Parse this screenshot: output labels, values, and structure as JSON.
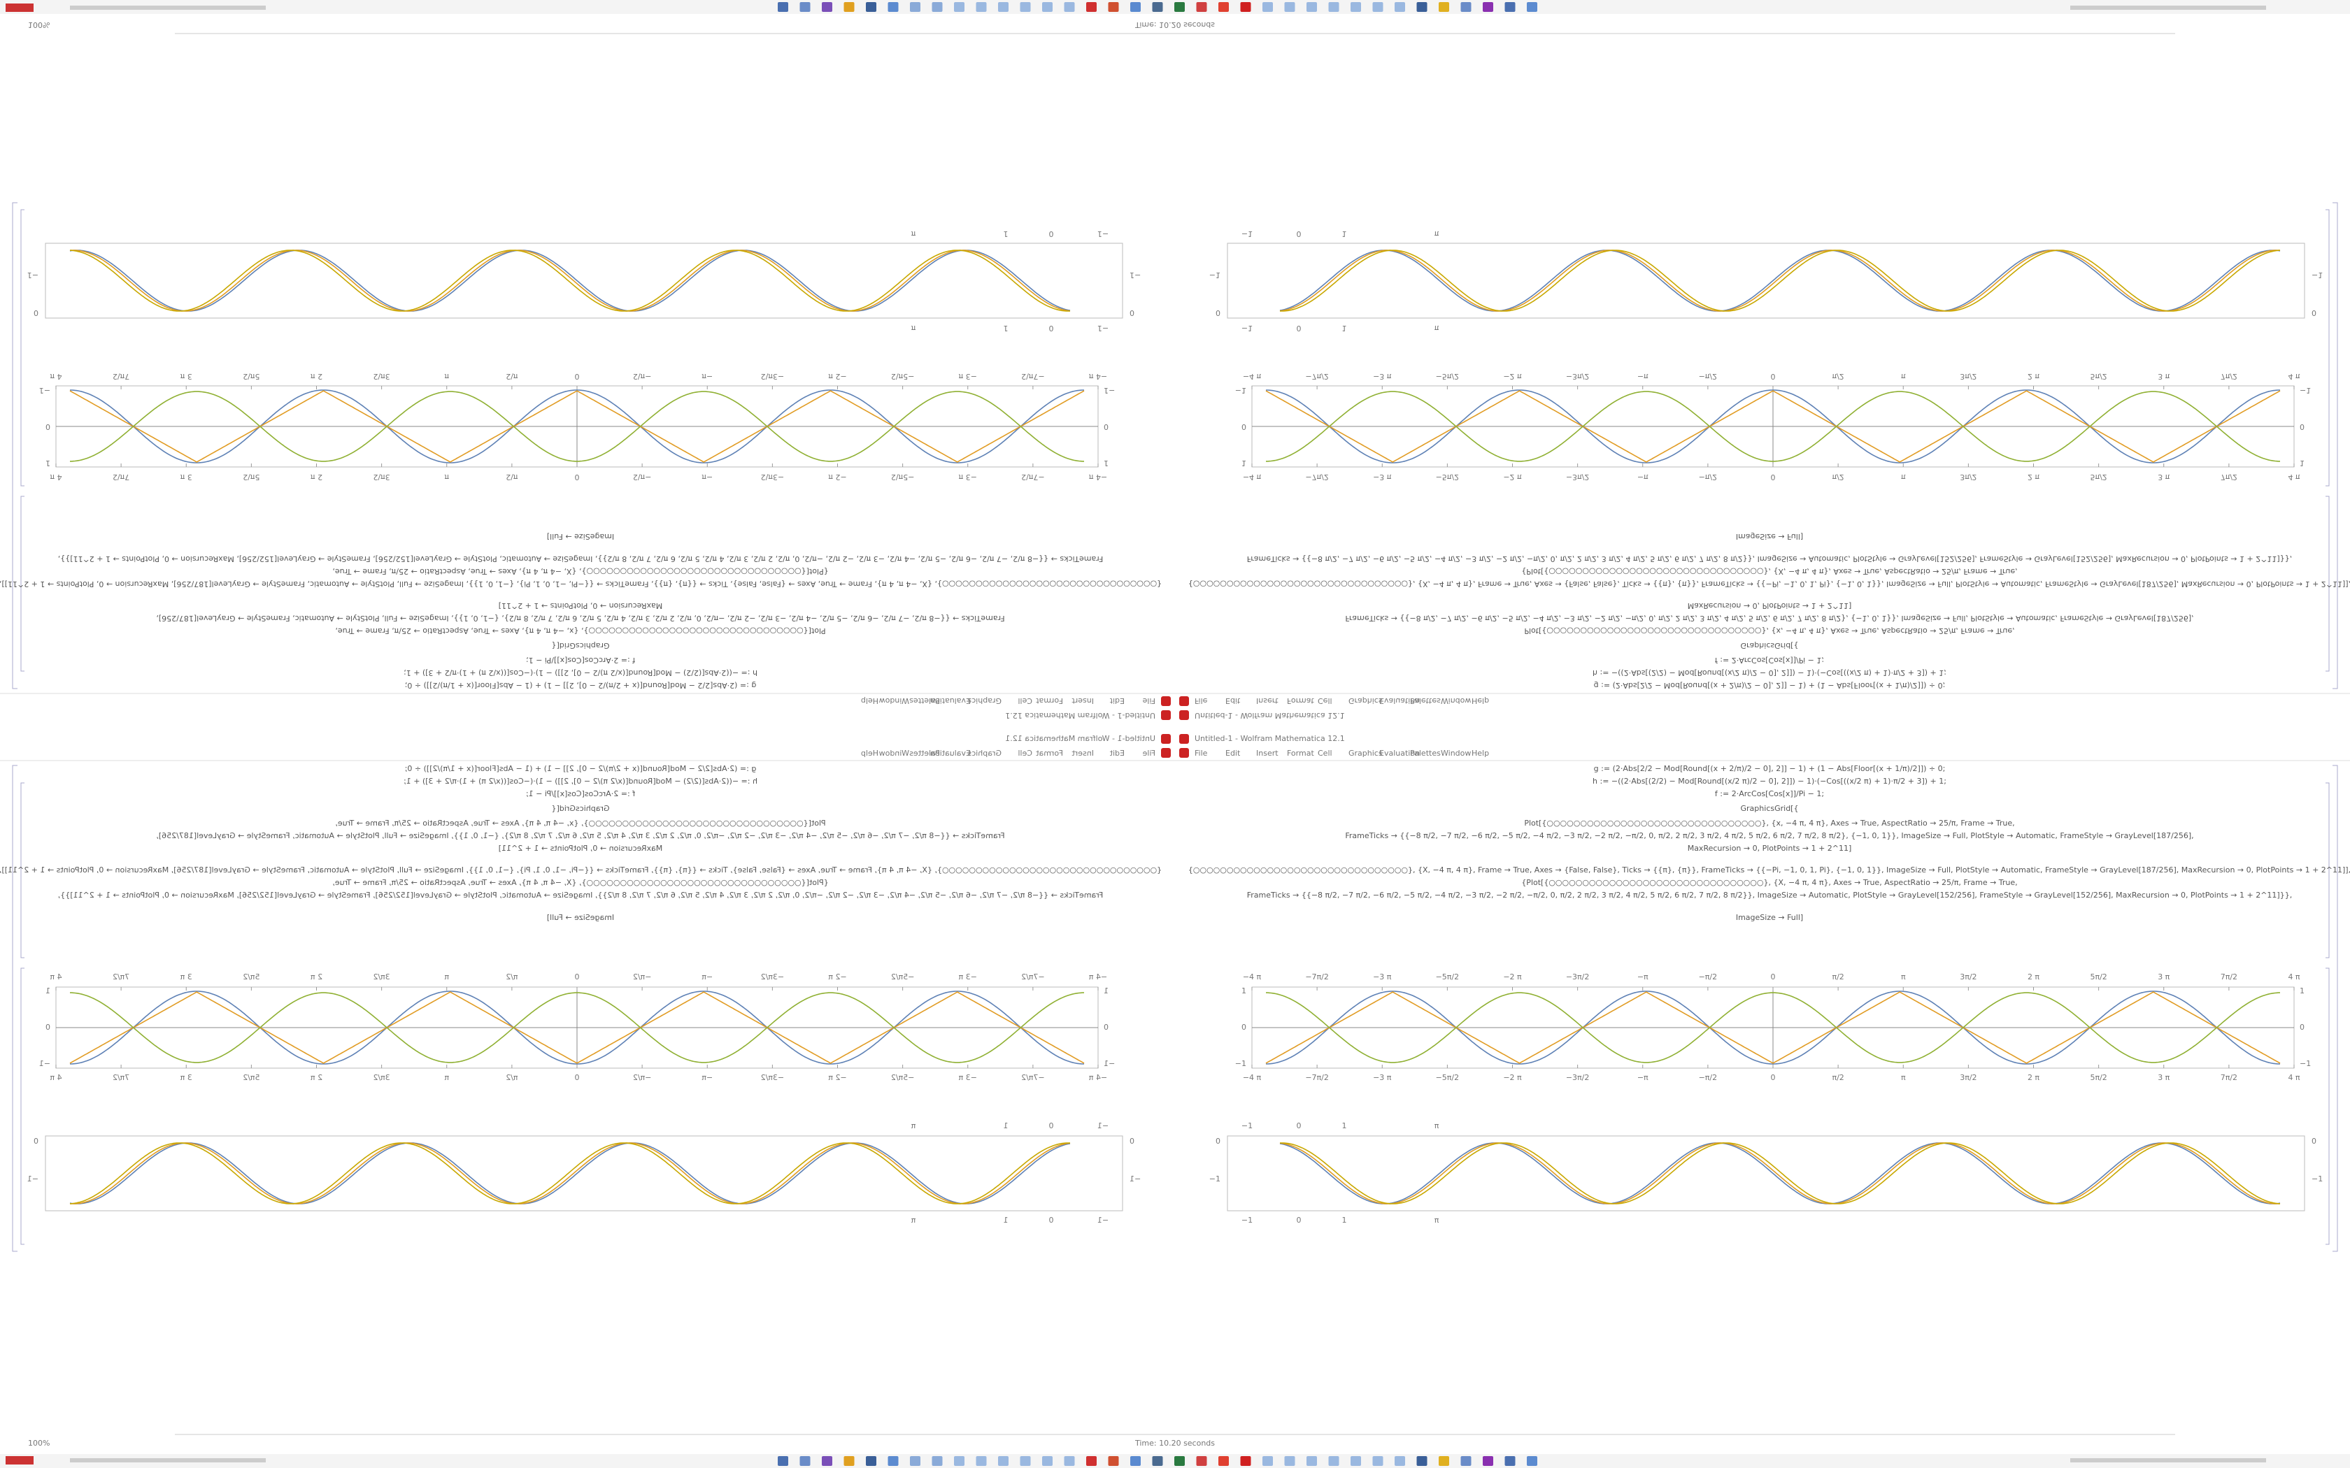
{
  "window_title": "Untitled-1 - Wolfram Mathematica 12.1",
  "menu": [
    "File",
    "Edit",
    "Insert",
    "Format",
    "Cell",
    "Graphics",
    "Evaluation",
    "Palettes",
    "Window",
    "Help"
  ],
  "status": "Time: 10.20 seconds",
  "zoom": "100%",
  "code": [
    "g := (2·Abs[2/2 − Mod[Round[(x + 2/π)/2 − 0], 2]] − 1) + (1 − Abs[Floor[(x + 1/π)/2]]) ÷ 0;",
    "h := −((2·Abs[(2/2) − Mod[Round[(x/2 π)/2 − 0], 2]]) − 1)·(−Cos[((x/2 π) + 1)·π/2 + 3]) + 1;",
    "f := 2·ArcCos[Cos[x]]/Pi − 1;",
    "GraphicsGrid[{",
    "Plot[{○○○○○○○○○○○○○○○○○○○○○○○○○○○○○○○○}, {x, −4 π, 4 π}, Axes → True, AspectRatio → 25/π, Frame → True,",
    "FrameTicks → {{−8 π/2, −7 π/2, −6 π/2, −5 π/2, −4 π/2, −3 π/2, −2 π/2, −π/2, 0, π/2, 2 π/2, 3 π/2, 4 π/2, 5 π/2, 6 π/2, 7 π/2, 8 π/2}, {−1, 0, 1}}, ImageSize → Full, PlotStyle → Automatic, FrameStyle → GrayLevel[187/256],",
    "MaxRecursion → 0, PlotPoints → 1 + 2^11]",
    "{○○○○○○○○○○○○○○○○○○○○○○○○○○○○○○○○}, {X, −4 π, 4 π}, Frame → True, Axes → {False, False}, Ticks → {{π}, {π}}, FrameTicks → {{−Pi, −1, 0, 1, Pi}, {−1, 0, 1}}, ImageSize → Full, PlotStyle → Automatic, FrameStyle → GrayLevel[187/256], MaxRecursion → 0, PlotPoints → 1 + 2^11]],",
    "{Plot[{○○○○○○○○○○○○○○○○○○○○○○○○○○○○○○○○}, {X, −4 π, 4 π}, Axes → True, AspectRatio → 25/π, Frame → True,",
    "FrameTicks → {{−8 π/2, −7 π/2, −6 π/2, −5 π/2, −4 π/2, −3 π/2, −2 π/2, −π/2, 0, π/2, 2 π/2, 3 π/2, 4 π/2, 5 π/2, 6 π/2, 7 π/2, 8 π/2}}, ImageSize → Automatic, PlotStyle → GrayLevel[152/256], FrameStyle → GrayLevel[152/256], MaxRecursion → 0, PlotPoints → 1 + 2^11]}},",
    "ImageSize → Full]"
  ],
  "plot_a": {
    "x_ticks": [
      "−4 π",
      "−7π/2",
      "−3 π",
      "−5π/2",
      "−2 π",
      "−3π/2",
      "−π",
      "−π/2",
      "0",
      "π/2",
      "π",
      "3π/2",
      "2 π",
      "5π/2",
      "3 π",
      "7π/2",
      "4 π"
    ],
    "y_ticks": [
      "1",
      "0",
      "−1"
    ]
  },
  "plot_b": {
    "x_ticks": [
      "−1",
      "0",
      "1",
      "π"
    ],
    "y_ticks": [
      "0",
      "−1"
    ]
  }
}
